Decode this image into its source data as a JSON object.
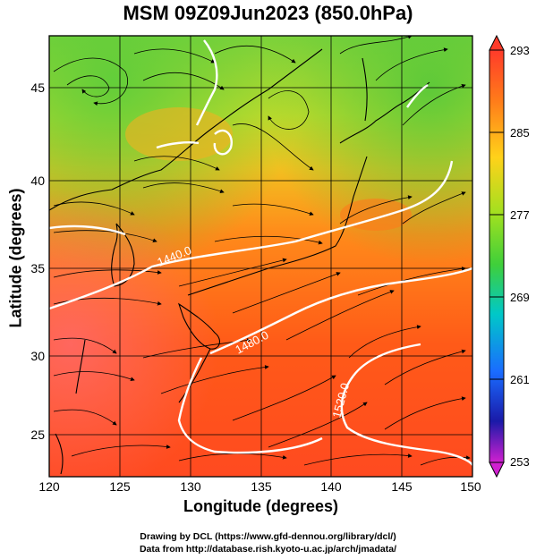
{
  "title": "MSM 09Z09Jun2023 (850.0hPa)",
  "x_axis": {
    "label": "Longitude (degrees)",
    "ticks": [
      "120",
      "125",
      "130",
      "135",
      "140",
      "145",
      "150"
    ]
  },
  "y_axis": {
    "label": "Latitude  (degrees)",
    "ticks": [
      "25",
      "30",
      "35",
      "40",
      "45"
    ]
  },
  "colorbar": {
    "labels": [
      "293",
      "285",
      "277",
      "269",
      "261",
      "253"
    ],
    "colors": [
      "#ff3b2a",
      "#ff8a1a",
      "#e6e01a",
      "#3fcf3a",
      "#00c8c8",
      "#1a6cff",
      "#1a1aa8",
      "#d020d0"
    ]
  },
  "contour_labels": {
    "c1440": "1440.0",
    "c1480": "1480.0",
    "c1520": "1520.0"
  },
  "credits": {
    "line1": "Drawing by DCL (https://www.gfd-dennou.org/library/dcl/)",
    "line2": "Data from http://database.rish.kyoto-u.ac.jp/arch/jmadata/"
  }
}
